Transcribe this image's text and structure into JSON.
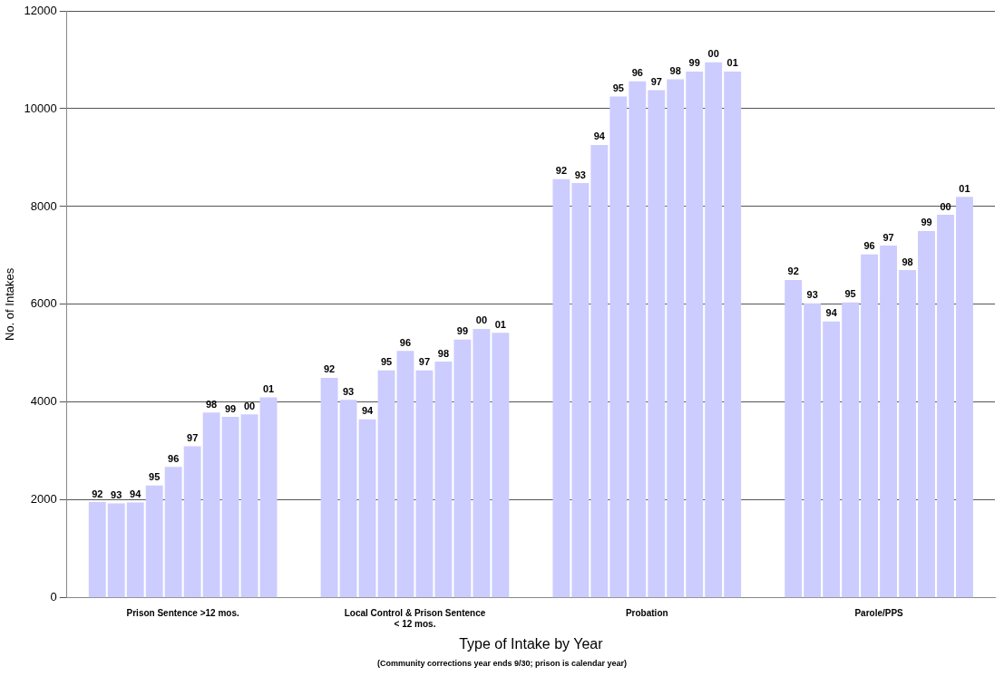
{
  "chart_data": {
    "type": "bar",
    "xlabel": "Type of Intake by Year",
    "ylabel": "No. of Intakes",
    "annotations": [
      "(Community corrections year ends 9/30; prison is calendar year)"
    ],
    "categories": [
      "Prison Sentence >12 mos.",
      "Local Control & Prison Sentence < 12 mos.",
      "Probation",
      "Parole/PPS"
    ],
    "series": [
      {
        "name": "92",
        "color": "#ccccff",
        "values": [
          1960,
          4500,
          8560,
          6500
        ]
      },
      {
        "name": "93",
        "color": "#ccccff",
        "values": [
          1930,
          4050,
          8480,
          6020
        ]
      },
      {
        "name": "94",
        "color": "#ccccff",
        "values": [
          1950,
          3650,
          9260,
          5650
        ]
      },
      {
        "name": "95",
        "color": "#ccccff",
        "values": [
          2300,
          4650,
          10250,
          6040
        ]
      },
      {
        "name": "96",
        "color": "#ccccff",
        "values": [
          2680,
          5050,
          10560,
          7020
        ]
      },
      {
        "name": "97",
        "color": "#ccccff",
        "values": [
          3100,
          4650,
          10380,
          7200
        ]
      },
      {
        "name": "98",
        "color": "#ccccff",
        "values": [
          3790,
          4830,
          10600,
          6700
        ]
      },
      {
        "name": "99",
        "color": "#ccccff",
        "values": [
          3700,
          5280,
          10760,
          7500
        ]
      },
      {
        "name": "00",
        "color": "#ccccff",
        "values": [
          3750,
          5500,
          10950,
          7830
        ]
      },
      {
        "name": "01",
        "color": "#ccccff",
        "values": [
          4100,
          5420,
          10760,
          8200
        ]
      }
    ],
    "ylim": [
      0,
      12000
    ],
    "yticks": [
      0,
      2000,
      4000,
      6000,
      8000,
      10000,
      12000
    ],
    "grid": "y",
    "legend": false
  }
}
